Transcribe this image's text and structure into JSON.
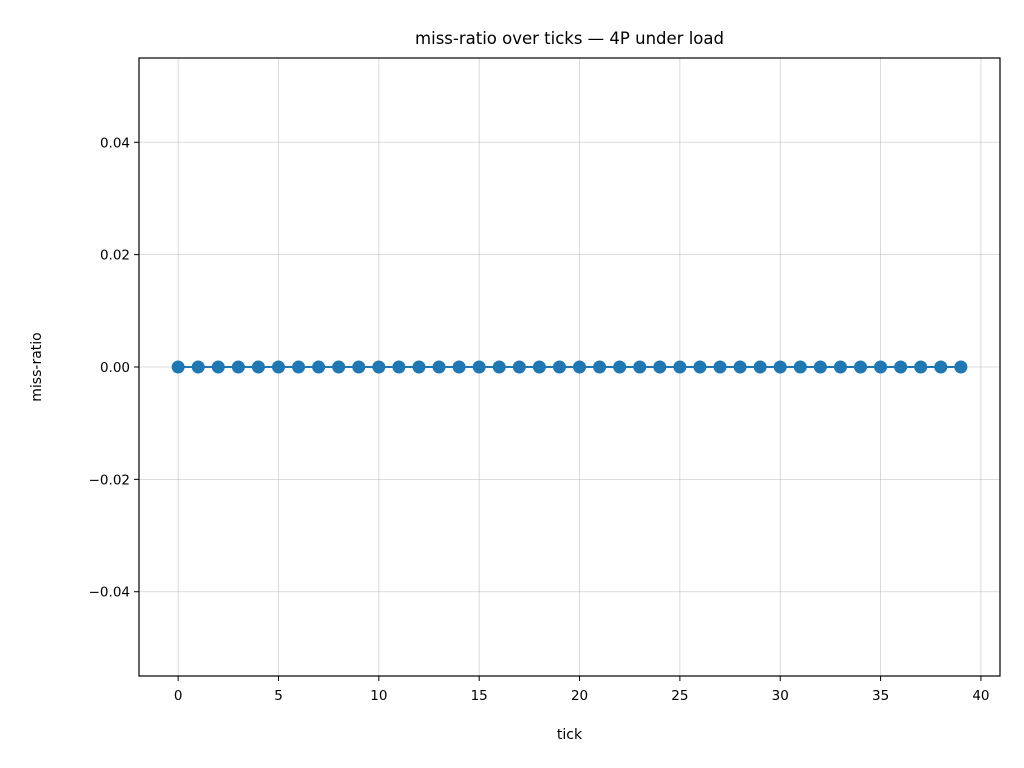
{
  "chart_data": {
    "type": "line",
    "title": "miss-ratio over ticks — 4P under load",
    "xlabel": "tick",
    "ylabel": "miss-ratio",
    "xlim": [
      -1.95,
      40.95
    ],
    "ylim": [
      -0.055,
      0.055
    ],
    "xticks": [
      0,
      5,
      10,
      15,
      20,
      25,
      30,
      35,
      40
    ],
    "yticks": [
      -0.04,
      -0.02,
      0.0,
      0.02,
      0.04
    ],
    "ytick_labels": [
      "−0.04",
      "−0.02",
      "0.00",
      "0.02",
      "0.04"
    ],
    "grid": true,
    "series": [
      {
        "color": "#1f77b4",
        "marker": "circle",
        "x": [
          0,
          1,
          2,
          3,
          4,
          5,
          6,
          7,
          8,
          9,
          10,
          11,
          12,
          13,
          14,
          15,
          16,
          17,
          18,
          19,
          20,
          21,
          22,
          23,
          24,
          25,
          26,
          27,
          28,
          29,
          30,
          31,
          32,
          33,
          34,
          35,
          36,
          37,
          38,
          39
        ],
        "y": [
          0,
          0,
          0,
          0,
          0,
          0,
          0,
          0,
          0,
          0,
          0,
          0,
          0,
          0,
          0,
          0,
          0,
          0,
          0,
          0,
          0,
          0,
          0,
          0,
          0,
          0,
          0,
          0,
          0,
          0,
          0,
          0,
          0,
          0,
          0,
          0,
          0,
          0,
          0,
          0
        ]
      }
    ]
  }
}
